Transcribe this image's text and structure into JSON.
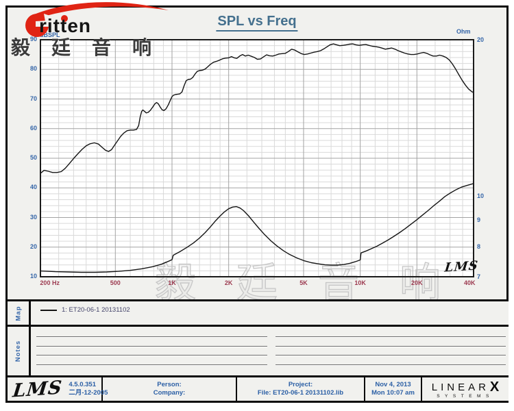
{
  "brand": {
    "logo_text": "ritten",
    "chinese_name": "毅 廷 音 响"
  },
  "title": "SPL vs Freq",
  "watermark_text": "毅 廷 音 响",
  "plot_corner_logo": "LMS",
  "chart_data": {
    "type": "line",
    "title": "SPL vs Freq",
    "grid": true,
    "x_axis": {
      "scale": "log",
      "unit": "Hz",
      "min": 200,
      "max": 40000,
      "ticks": [
        {
          "label": "200 Hz",
          "value": 200
        },
        {
          "label": "500",
          "value": 500
        },
        {
          "label": "1K",
          "value": 1000
        },
        {
          "label": "2K",
          "value": 2000
        },
        {
          "label": "5K",
          "value": 5000
        },
        {
          "label": "10K",
          "value": 10000
        },
        {
          "label": "20K",
          "value": 20000
        },
        {
          "label": "40K",
          "value": 40000
        }
      ]
    },
    "y_left_axis": {
      "label": "dBSPL",
      "scale": "linear",
      "min": 10,
      "max": 90,
      "ticks": [
        90,
        80,
        70,
        60,
        50,
        40,
        30,
        20,
        10
      ],
      "minor_step": 2
    },
    "y_right_axis": {
      "label": "Ohm",
      "scale": "log",
      "min": 7,
      "max": 20,
      "ticks": [
        20,
        10,
        9,
        8,
        7
      ]
    },
    "series": [
      {
        "id": "spl-curve",
        "axis": "left",
        "unit": "dBSPL",
        "points": [
          [
            200,
            44.9
          ],
          [
            209,
            45.9
          ],
          [
            220,
            45.6
          ],
          [
            232,
            45.2
          ],
          [
            245,
            45.2
          ],
          [
            258,
            45.5
          ],
          [
            271,
            46.6
          ],
          [
            285,
            48.2
          ],
          [
            300,
            49.9
          ],
          [
            316,
            51.5
          ],
          [
            333,
            53.0
          ],
          [
            350,
            54.2
          ],
          [
            368,
            54.9
          ],
          [
            387,
            55.2
          ],
          [
            406,
            54.8
          ],
          [
            425,
            53.7
          ],
          [
            443,
            52.7
          ],
          [
            460,
            52.3
          ],
          [
            477,
            52.9
          ],
          [
            495,
            54.4
          ],
          [
            514,
            55.9
          ],
          [
            534,
            57.4
          ],
          [
            555,
            58.5
          ],
          [
            577,
            59.3
          ],
          [
            600,
            59.5
          ],
          [
            624,
            59.5
          ],
          [
            648,
            59.7
          ],
          [
            665,
            61.0
          ],
          [
            678,
            64.0
          ],
          [
            690,
            65.8
          ],
          [
            700,
            66.3
          ],
          [
            715,
            65.8
          ],
          [
            730,
            65.3
          ],
          [
            748,
            65.5
          ],
          [
            768,
            66.2
          ],
          [
            790,
            67.3
          ],
          [
            812,
            68.4
          ],
          [
            828,
            68.8
          ],
          [
            845,
            68.4
          ],
          [
            865,
            67.3
          ],
          [
            885,
            66.4
          ],
          [
            905,
            66.1
          ],
          [
            930,
            66.7
          ],
          [
            955,
            68.0
          ],
          [
            980,
            69.6
          ],
          [
            1000,
            70.8
          ],
          [
            1020,
            71.3
          ],
          [
            1045,
            71.5
          ],
          [
            1070,
            71.6
          ],
          [
            1100,
            71.7
          ],
          [
            1130,
            72.4
          ],
          [
            1160,
            74.5
          ],
          [
            1190,
            76.2
          ],
          [
            1220,
            76.6
          ],
          [
            1255,
            76.7
          ],
          [
            1290,
            77.3
          ],
          [
            1325,
            78.4
          ],
          [
            1360,
            79.3
          ],
          [
            1400,
            79.6
          ],
          [
            1450,
            79.7
          ],
          [
            1500,
            80.1
          ],
          [
            1550,
            80.9
          ],
          [
            1600,
            81.7
          ],
          [
            1660,
            82.4
          ],
          [
            1720,
            82.7
          ],
          [
            1790,
            83.1
          ],
          [
            1860,
            83.6
          ],
          [
            1930,
            83.8
          ],
          [
            2000,
            83.9
          ],
          [
            2070,
            84.3
          ],
          [
            2140,
            83.9
          ],
          [
            2210,
            83.7
          ],
          [
            2290,
            84.5
          ],
          [
            2370,
            85.0
          ],
          [
            2450,
            84.5
          ],
          [
            2540,
            84.8
          ],
          [
            2640,
            84.4
          ],
          [
            2740,
            84.0
          ],
          [
            2840,
            83.4
          ],
          [
            2950,
            83.5
          ],
          [
            3060,
            84.2
          ],
          [
            3180,
            84.9
          ],
          [
            3300,
            84.6
          ],
          [
            3430,
            84.5
          ],
          [
            3560,
            84.8
          ],
          [
            3700,
            85.2
          ],
          [
            3850,
            85.3
          ],
          [
            4000,
            85.4
          ],
          [
            4150,
            86.0
          ],
          [
            4320,
            86.8
          ],
          [
            4490,
            86.5
          ],
          [
            4670,
            85.9
          ],
          [
            4860,
            85.3
          ],
          [
            5050,
            85.0
          ],
          [
            5250,
            85.2
          ],
          [
            5460,
            85.5
          ],
          [
            5680,
            85.8
          ],
          [
            5910,
            86.0
          ],
          [
            6150,
            86.3
          ],
          [
            6400,
            86.9
          ],
          [
            6650,
            87.6
          ],
          [
            6920,
            88.3
          ],
          [
            7200,
            88.6
          ],
          [
            7490,
            88.3
          ],
          [
            7790,
            88.0
          ],
          [
            8100,
            88.1
          ],
          [
            8430,
            88.3
          ],
          [
            8770,
            88.5
          ],
          [
            9120,
            88.6
          ],
          [
            9490,
            88.3
          ],
          [
            9870,
            88.1
          ],
          [
            10300,
            88.3
          ],
          [
            10700,
            88.4
          ],
          [
            11100,
            88.1
          ],
          [
            11600,
            87.8
          ],
          [
            12000,
            87.7
          ],
          [
            12500,
            87.5
          ],
          [
            13000,
            87.2
          ],
          [
            13600,
            86.8
          ],
          [
            14100,
            87.0
          ],
          [
            14700,
            87.2
          ],
          [
            15300,
            86.8
          ],
          [
            15900,
            86.3
          ],
          [
            16500,
            85.9
          ],
          [
            17200,
            85.5
          ],
          [
            17900,
            85.2
          ],
          [
            18600,
            85.0
          ],
          [
            19300,
            85.0
          ],
          [
            20100,
            85.2
          ],
          [
            20900,
            85.5
          ],
          [
            21700,
            85.7
          ],
          [
            22600,
            85.4
          ],
          [
            23500,
            84.9
          ],
          [
            24400,
            84.5
          ],
          [
            25400,
            84.5
          ],
          [
            26400,
            84.8
          ],
          [
            27500,
            84.5
          ],
          [
            28600,
            84.0
          ],
          [
            29700,
            83.2
          ],
          [
            30900,
            81.8
          ],
          [
            32100,
            80.1
          ],
          [
            33400,
            78.2
          ],
          [
            34800,
            76.3
          ],
          [
            36200,
            74.7
          ],
          [
            37600,
            73.4
          ],
          [
            39100,
            72.5
          ],
          [
            40000,
            72.2
          ]
        ]
      },
      {
        "id": "impedance-curve",
        "axis": "right",
        "unit": "Ohm",
        "points": [
          [
            200,
            7.18
          ],
          [
            240,
            7.16
          ],
          [
            280,
            7.15
          ],
          [
            330,
            7.14
          ],
          [
            390,
            7.14
          ],
          [
            450,
            7.15
          ],
          [
            520,
            7.17
          ],
          [
            600,
            7.2
          ],
          [
            690,
            7.25
          ],
          [
            790,
            7.32
          ],
          [
            880,
            7.4
          ],
          [
            960,
            7.5
          ],
          [
            1000,
            7.55
          ],
          [
            1015,
            7.7
          ],
          [
            1100,
            7.82
          ],
          [
            1200,
            7.97
          ],
          [
            1300,
            8.13
          ],
          [
            1400,
            8.31
          ],
          [
            1500,
            8.51
          ],
          [
            1600,
            8.73
          ],
          [
            1700,
            8.96
          ],
          [
            1800,
            9.16
          ],
          [
            1900,
            9.33
          ],
          [
            2000,
            9.46
          ],
          [
            2100,
            9.53
          ],
          [
            2200,
            9.55
          ],
          [
            2300,
            9.49
          ],
          [
            2400,
            9.38
          ],
          [
            2550,
            9.17
          ],
          [
            2700,
            8.94
          ],
          [
            2900,
            8.67
          ],
          [
            3100,
            8.44
          ],
          [
            3350,
            8.21
          ],
          [
            3600,
            8.03
          ],
          [
            3900,
            7.86
          ],
          [
            4200,
            7.73
          ],
          [
            4600,
            7.61
          ],
          [
            5000,
            7.52
          ],
          [
            5500,
            7.45
          ],
          [
            6000,
            7.41
          ],
          [
            6500,
            7.38
          ],
          [
            7000,
            7.37
          ],
          [
            7600,
            7.37
          ],
          [
            8200,
            7.39
          ],
          [
            8800,
            7.43
          ],
          [
            9400,
            7.48
          ],
          [
            10000,
            7.54
          ],
          [
            10100,
            7.78
          ],
          [
            10800,
            7.85
          ],
          [
            11500,
            7.93
          ],
          [
            12300,
            8.02
          ],
          [
            13100,
            8.12
          ],
          [
            14000,
            8.23
          ],
          [
            15000,
            8.36
          ],
          [
            16100,
            8.5
          ],
          [
            17300,
            8.66
          ],
          [
            18500,
            8.82
          ],
          [
            19900,
            9.0
          ],
          [
            21300,
            9.18
          ],
          [
            22900,
            9.38
          ],
          [
            24500,
            9.58
          ],
          [
            26300,
            9.78
          ],
          [
            28200,
            9.99
          ],
          [
            30200,
            10.15
          ],
          [
            32400,
            10.3
          ],
          [
            34700,
            10.42
          ],
          [
            37200,
            10.5
          ],
          [
            40000,
            10.58
          ]
        ]
      }
    ],
    "legend_position": "map-band-below-chart",
    "grid_major_freqs": [
      500,
      1000,
      2000,
      5000,
      10000,
      20000
    ],
    "grid_minor_multipliers": [
      1.2,
      1.4,
      1.6,
      1.8,
      2,
      2.5,
      3,
      3.5,
      4,
      4.5,
      5,
      6,
      7,
      8,
      9
    ]
  },
  "map": {
    "label": "Map",
    "legend": "1: ET20-06-1 20131102"
  },
  "notes": {
    "label": "Notes",
    "line_rows": 4,
    "line_columns": 2
  },
  "footer": {
    "lms_logo": "LMS",
    "version": "4.5.0.351",
    "version_date": "二月-12-2005",
    "person_label": "Person:",
    "company_label": "Company:",
    "project_label": "Project:",
    "file_label": "File: ET20-06-1 20131102.lib",
    "date": "Nov  4, 2013",
    "time": "Mon 10:07 am",
    "brand_word": "LINEAR",
    "brand_x": "X",
    "brand_sub": "SYSTEMS"
  },
  "colors": {
    "brand_red": "#e02414",
    "title_blue": "#44708e",
    "tick_blue": "#3465a8",
    "freq_red": "#9c3a50",
    "curve_black": "#141414",
    "footer_blue": "#2b5fa5",
    "legend_ink": "#45456b",
    "grid_minor": "#d9d9d9",
    "grid_major": "#a3a3a3",
    "watermark_gray": "#c6c6c6",
    "band_bg": "#f1f1ee",
    "plot_bg": "#ffffff",
    "border_black": "#0b0b0b"
  }
}
